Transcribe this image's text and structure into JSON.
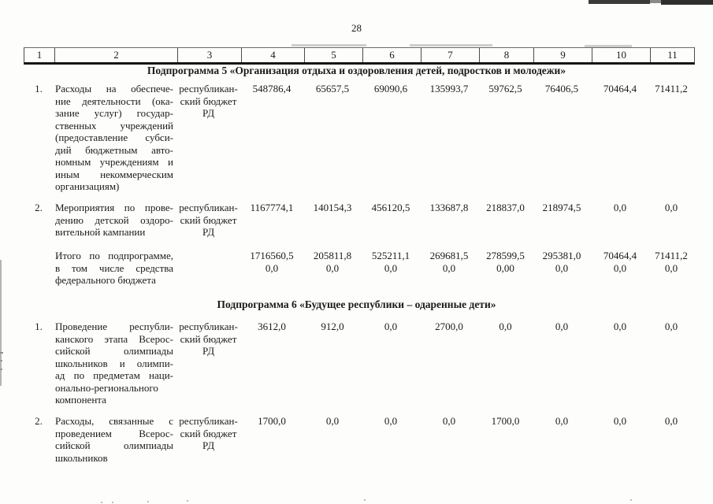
{
  "page": {
    "number": "28"
  },
  "table": {
    "column_numbers": [
      "1",
      "2",
      "3",
      "4",
      "5",
      "6",
      "7",
      "8",
      "9",
      "10",
      "11"
    ],
    "sections": [
      {
        "title": "Подпрограмма 5 «Организация отдыха и оздоровления детей, подростков и молодежи»",
        "rows": [
          {
            "num": "1.",
            "name_lines": [
              "Расходы на обеспече-",
              "ние деятельности (ока-",
              "зание услуг) государ-",
              "ственных учреждений",
              "(предоставление субси-",
              "дий бюджетным авто-",
              "номным учреждениям и",
              "иным некоммерческим",
              "организациям)"
            ],
            "source_lines": [
              "республикан-",
              "ский бюджет",
              "РД"
            ],
            "values": [
              "548786,4",
              "65657,5",
              "69090,6",
              "135993,7",
              "59762,5",
              "76406,5",
              "70464,4",
              "71411,2"
            ]
          },
          {
            "num": "2.",
            "name_lines": [
              "Мероприятия по прове-",
              "дению детской оздоро-",
              "вительной кампании"
            ],
            "source_lines": [
              "республикан-",
              "ский бюджет",
              "РД"
            ],
            "values": [
              "1167774,1",
              "140154,3",
              "456120,5",
              "133687,8",
              "218837,0",
              "218974,5",
              "0,0",
              "0,0"
            ]
          },
          {
            "num": "",
            "name_lines": [
              "Итого по подпрограмме,",
              "в том числе средства",
              "федерального бюджета"
            ],
            "source_lines": [],
            "values_lines": [
              [
                "1716560,5",
                "0,0"
              ],
              [
                "205811,8",
                "0,0"
              ],
              [
                "525211,1",
                "0,0"
              ],
              [
                "269681,5",
                "0,0"
              ],
              [
                "278599,5",
                "0,00"
              ],
              [
                "295381,0",
                "0,0"
              ],
              [
                "70464,4",
                "0,0"
              ],
              [
                "71411,2",
                "0,0"
              ]
            ]
          }
        ]
      },
      {
        "title": "Подпрограмма 6 «Будущее республики – одаренные дети»",
        "rows": [
          {
            "num": "1.",
            "name_lines": [
              "Проведение республи-",
              "канского этапа Всерос-",
              "сийской олимпиады",
              "школьников и олимпи-",
              "ад по предметам наци-",
              "онально-регионального",
              "компонента"
            ],
            "source_lines": [
              "республикан-",
              "ский бюджет",
              "РД"
            ],
            "values": [
              "3612,0",
              "912,0",
              "0,0",
              "2700,0",
              "0,0",
              "0,0",
              "0,0",
              "0,0"
            ]
          },
          {
            "num": "2.",
            "name_lines": [
              "Расходы, связанные с",
              "проведением Всерос-",
              "сийской олимпиады",
              "школьников"
            ],
            "source_lines": [
              "республикан-",
              "ский бюджет",
              "РД"
            ],
            "values": [
              "1700,0",
              "0,0",
              "0,0",
              "0,0",
              "1700,0",
              "0,0",
              "0,0",
              "0,0"
            ]
          }
        ]
      }
    ]
  }
}
